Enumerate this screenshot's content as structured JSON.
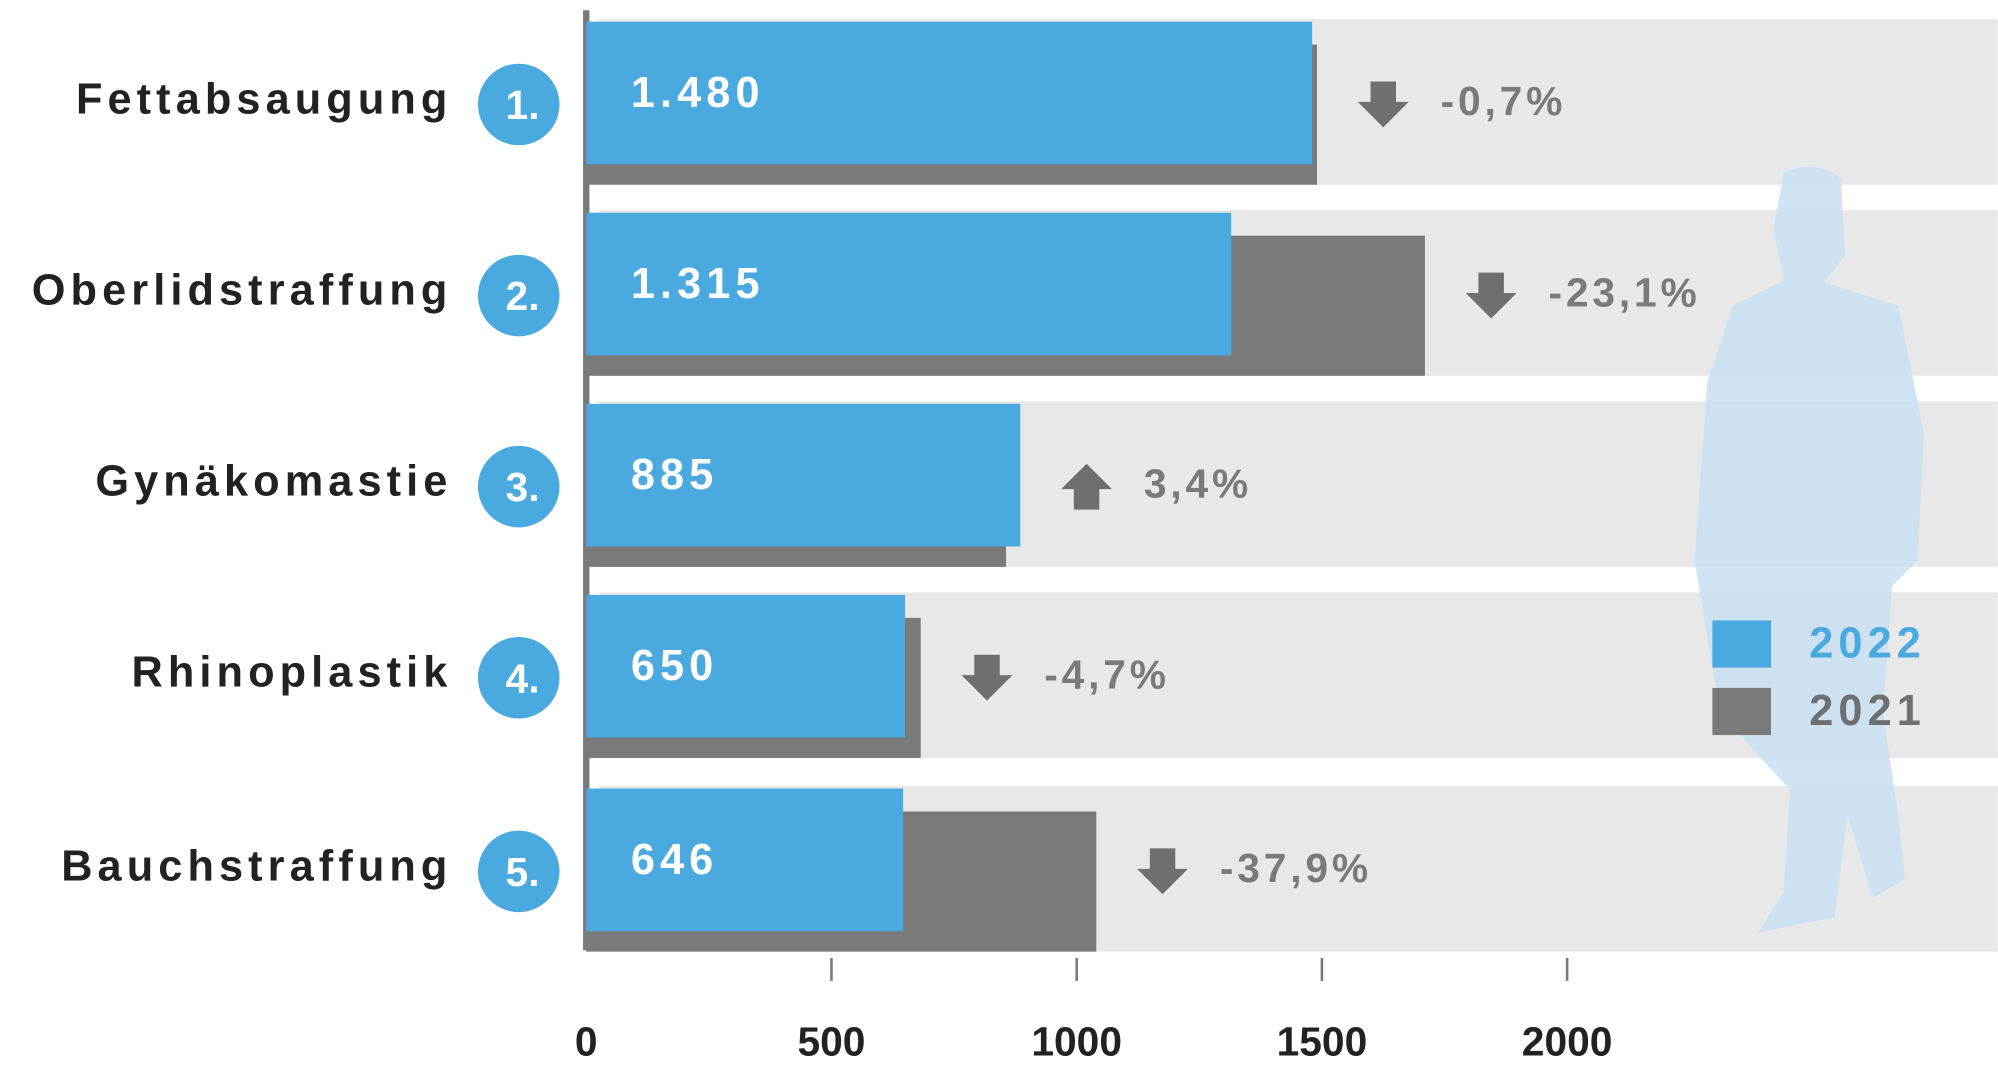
{
  "chart_data": {
    "type": "bar",
    "categories": [
      "Fettabsaugung",
      "Oberlidstraffung",
      "Gynäkomastie",
      "Rhinoplastik",
      "Bauchstraffung"
    ],
    "ranks": [
      "1.",
      "2.",
      "3.",
      "4.",
      "5."
    ],
    "series": [
      {
        "name": "2022",
        "color": "#4aa9df",
        "values": [
          1480,
          1315,
          885,
          650,
          646
        ],
        "value_labels": [
          "1.480",
          "1.315",
          "885",
          "650",
          "646"
        ]
      },
      {
        "name": "2021",
        "color": "#7a7a7a",
        "values": [
          1490,
          1710,
          856,
          682,
          1040
        ]
      }
    ],
    "changes": [
      "-0,7%",
      "-23,1%",
      "3,4%",
      "-4,7%",
      "-37,9%"
    ],
    "xlim": [
      0,
      2878
    ],
    "xticks": [
      0,
      500,
      1000,
      1500,
      2000
    ]
  }
}
